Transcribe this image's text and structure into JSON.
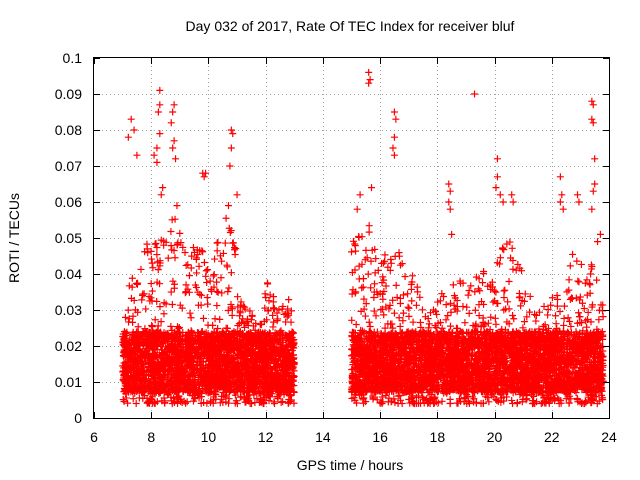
{
  "chart_data": {
    "type": "scatter",
    "title": "Day 032 of 2017, Rate Of TEC Index for receiver bluf",
    "xlabel": "GPS time / hours",
    "ylabel": "ROTI / TECUs",
    "xlim": [
      6,
      24
    ],
    "ylim": [
      0,
      0.1
    ],
    "x_ticks": [
      6,
      8,
      10,
      12,
      14,
      16,
      18,
      20,
      22,
      24
    ],
    "y_ticks": [
      0,
      0.01,
      0.02,
      0.03,
      0.04,
      0.05,
      0.06,
      0.07,
      0.08,
      0.09,
      0.1
    ],
    "x_tick_labels": [
      "6",
      "8",
      "10",
      "12",
      "14",
      "16",
      "18",
      "20",
      "22",
      "24"
    ],
    "y_tick_labels": [
      "0",
      "0.01",
      "0.02",
      "0.03",
      "0.04",
      "0.05",
      "0.06",
      "0.07",
      "0.08",
      "0.09",
      "0.1"
    ],
    "grid": true,
    "marker": "+",
    "marker_color": "#ff0000",
    "series": [
      {
        "name": "ROTI",
        "segments": [
          {
            "x_range": [
              7.0,
              13.0
            ],
            "typical_range": [
              0.005,
              0.03
            ]
          },
          {
            "x_range": [
              15.0,
              23.8
            ],
            "typical_range": [
              0.005,
              0.03
            ]
          }
        ],
        "points": [
          {
            "x": 7.3,
            "y": 0.083
          },
          {
            "x": 7.4,
            "y": 0.08
          },
          {
            "x": 7.2,
            "y": 0.078
          },
          {
            "x": 7.5,
            "y": 0.073
          },
          {
            "x": 8.3,
            "y": 0.091
          },
          {
            "x": 8.3,
            "y": 0.087
          },
          {
            "x": 8.25,
            "y": 0.085
          },
          {
            "x": 8.3,
            "y": 0.079
          },
          {
            "x": 8.2,
            "y": 0.075
          },
          {
            "x": 8.1,
            "y": 0.073
          },
          {
            "x": 8.2,
            "y": 0.071
          },
          {
            "x": 8.4,
            "y": 0.064
          },
          {
            "x": 8.35,
            "y": 0.062
          },
          {
            "x": 8.8,
            "y": 0.087
          },
          {
            "x": 8.75,
            "y": 0.085
          },
          {
            "x": 8.7,
            "y": 0.082
          },
          {
            "x": 8.8,
            "y": 0.077
          },
          {
            "x": 8.85,
            "y": 0.072
          },
          {
            "x": 8.75,
            "y": 0.075
          },
          {
            "x": 8.9,
            "y": 0.059
          },
          {
            "x": 9.8,
            "y": 0.068
          },
          {
            "x": 9.85,
            "y": 0.067
          },
          {
            "x": 9.9,
            "y": 0.068
          },
          {
            "x": 10.8,
            "y": 0.08
          },
          {
            "x": 10.85,
            "y": 0.079
          },
          {
            "x": 10.8,
            "y": 0.075
          },
          {
            "x": 10.75,
            "y": 0.07
          },
          {
            "x": 11.0,
            "y": 0.062
          },
          {
            "x": 10.7,
            "y": 0.059
          },
          {
            "x": 15.6,
            "y": 0.096
          },
          {
            "x": 15.65,
            "y": 0.094
          },
          {
            "x": 15.6,
            "y": 0.093
          },
          {
            "x": 15.7,
            "y": 0.064
          },
          {
            "x": 15.3,
            "y": 0.062
          },
          {
            "x": 15.2,
            "y": 0.058
          },
          {
            "x": 16.5,
            "y": 0.085
          },
          {
            "x": 16.55,
            "y": 0.083
          },
          {
            "x": 16.5,
            "y": 0.078
          },
          {
            "x": 16.45,
            "y": 0.075
          },
          {
            "x": 16.5,
            "y": 0.073
          },
          {
            "x": 18.4,
            "y": 0.065
          },
          {
            "x": 18.45,
            "y": 0.063
          },
          {
            "x": 18.4,
            "y": 0.06
          },
          {
            "x": 18.45,
            "y": 0.058
          },
          {
            "x": 18.5,
            "y": 0.051
          },
          {
            "x": 19.3,
            "y": 0.09
          },
          {
            "x": 20.1,
            "y": 0.072
          },
          {
            "x": 20.1,
            "y": 0.067
          },
          {
            "x": 20.05,
            "y": 0.064
          },
          {
            "x": 20.2,
            "y": 0.062
          },
          {
            "x": 20.3,
            "y": 0.06
          },
          {
            "x": 20.6,
            "y": 0.062
          },
          {
            "x": 20.65,
            "y": 0.06
          },
          {
            "x": 22.3,
            "y": 0.067
          },
          {
            "x": 22.35,
            "y": 0.062
          },
          {
            "x": 22.3,
            "y": 0.06
          },
          {
            "x": 22.4,
            "y": 0.058
          },
          {
            "x": 22.9,
            "y": 0.062
          },
          {
            "x": 22.95,
            "y": 0.06
          },
          {
            "x": 23.4,
            "y": 0.088
          },
          {
            "x": 23.45,
            "y": 0.087
          },
          {
            "x": 23.4,
            "y": 0.083
          },
          {
            "x": 23.45,
            "y": 0.082
          },
          {
            "x": 23.5,
            "y": 0.072
          },
          {
            "x": 23.5,
            "y": 0.065
          },
          {
            "x": 23.45,
            "y": 0.063
          },
          {
            "x": 23.4,
            "y": 0.058
          },
          {
            "x": 23.6,
            "y": 0.049
          },
          {
            "x": 23.7,
            "y": 0.051
          }
        ]
      }
    ]
  }
}
